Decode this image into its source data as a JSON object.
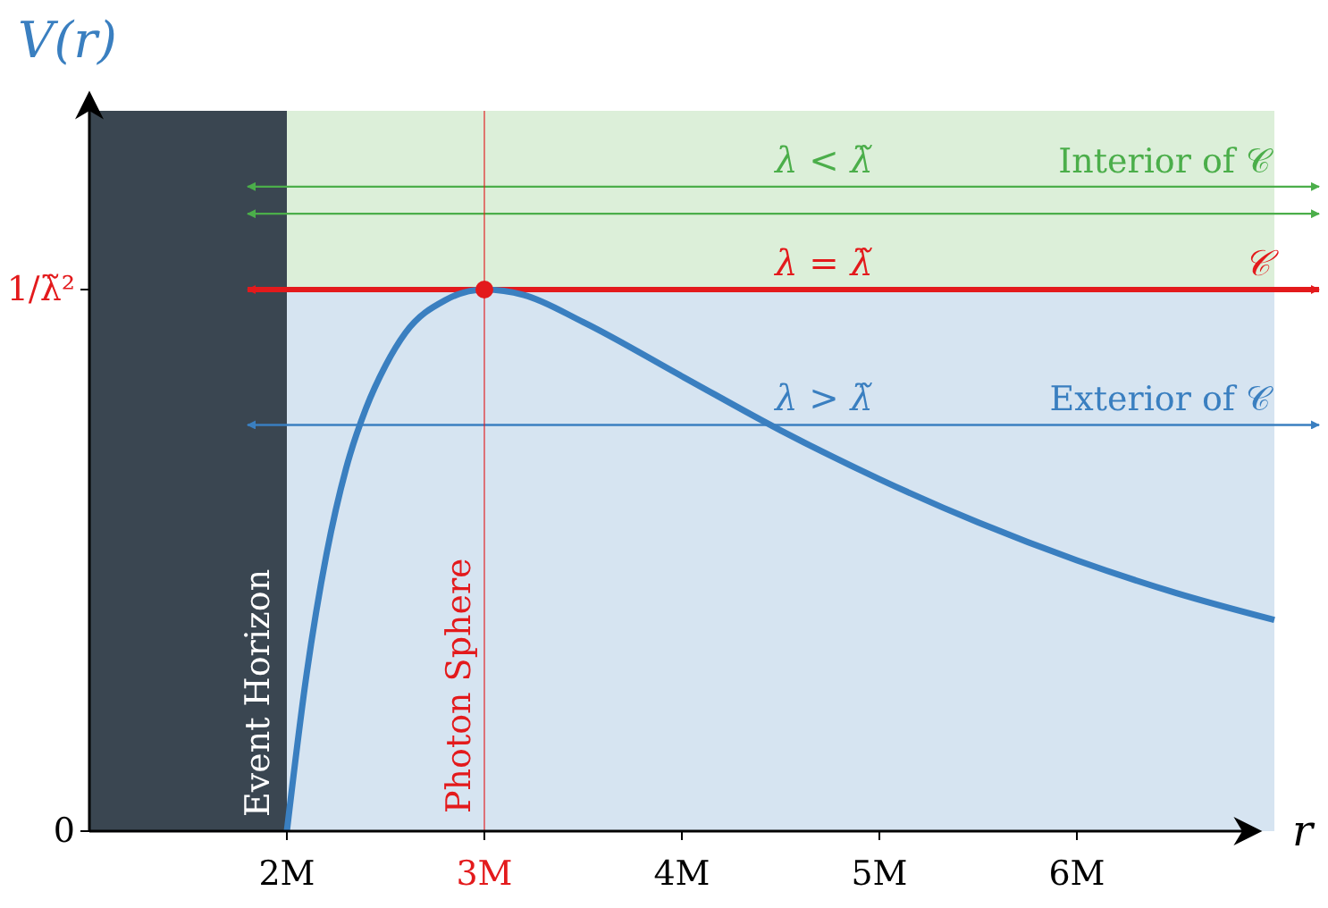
{
  "chart_data": {
    "type": "line",
    "ylabel": "V(r)",
    "xlabel": "r",
    "x": [
      2,
      2.1,
      2.2,
      2.3,
      2.4,
      2.5,
      2.6,
      2.8,
      3,
      3.2,
      3.5,
      4,
      4.5,
      5,
      5.5,
      6,
      6.5,
      7
    ],
    "series": [
      {
        "color": "#3a7fc0",
        "values": [
          0,
          0.29,
          0.51,
          0.67,
          0.78,
          0.86,
          0.92,
          0.98,
          1,
          0.99,
          0.94,
          0.84,
          0.74,
          0.65,
          0.57,
          0.5,
          0.44,
          0.39
        ]
      },
      {
        "type": "scatter",
        "color": "#e31a1c",
        "x": [
          3
        ],
        "values": [
          1
        ]
      }
    ],
    "xlim": [
      1,
      7
    ],
    "ylim": [
      0,
      1.33
    ],
    "xticks": [
      {
        "value": 2,
        "label": "2M"
      },
      {
        "value": 3,
        "label": "3M"
      },
      {
        "value": 4,
        "label": "4M"
      },
      {
        "value": 5,
        "label": "5M"
      },
      {
        "value": 6,
        "label": "6M"
      }
    ],
    "yticks": [
      0,
      {
        "value": 1,
        "label": "1/λ̃²"
      }
    ],
    "bands": [
      {
        "axis": "y",
        "from": 1,
        "to": 1.33,
        "label": "Interior of 𝒞",
        "color": "#dcefd9"
      },
      {
        "axis": "y",
        "from": 0,
        "to": 1,
        "label": "Exterior of 𝒞",
        "color": "#d6e4f1"
      },
      {
        "axis": "x",
        "from": 1,
        "to": 2,
        "label": "Event Horizon",
        "color": "#3a4651"
      }
    ],
    "ref_lines": [
      {
        "axis": "y",
        "value": 1.19,
        "label": "λ < λ̃",
        "color": "#4bae4a"
      },
      {
        "axis": "y",
        "value": 1.14,
        "label": null,
        "color": "#4bae4a"
      },
      {
        "axis": "y",
        "value": 1,
        "label": "λ = λ̃",
        "color": "#e31a1c"
      },
      {
        "axis": "y",
        "value": 0.75,
        "label": "λ > λ̃",
        "color": "#3a7fc0"
      },
      {
        "axis": "x",
        "value": 3,
        "label": "Photon Sphere",
        "color": "#e31a1c"
      }
    ],
    "annotations": [
      {
        "text": "𝒞",
        "x": 7,
        "y": 1
      }
    ],
    "grid": false
  }
}
